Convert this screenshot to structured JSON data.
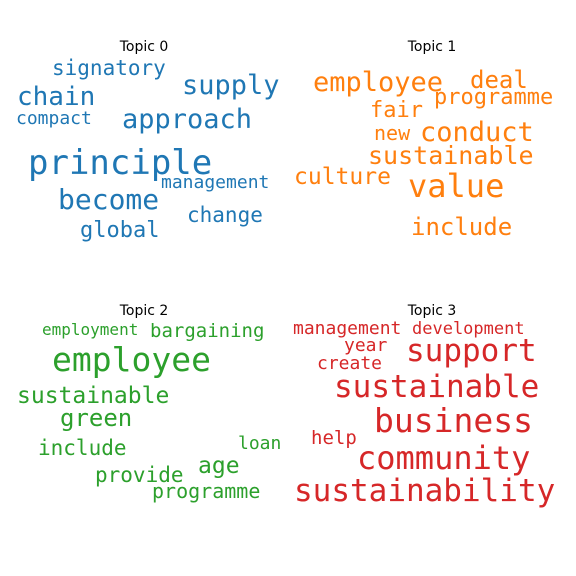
{
  "topics": [
    {
      "title": "Topic 0",
      "color": "#1f77b4",
      "words": {
        "signatory": "signatory",
        "supply": "supply",
        "chain": "chain",
        "approach": "approach",
        "compact": "compact",
        "principle": "principle",
        "management": "management",
        "become": "become",
        "change": "change",
        "global": "global"
      }
    },
    {
      "title": "Topic 1",
      "color": "#ff7f0e",
      "words": {
        "employee": "employee",
        "deal": "deal",
        "programme": "programme",
        "fair": "fair",
        "new": "new",
        "conduct": "conduct",
        "sustainable": "sustainable",
        "culture": "culture",
        "value": "value",
        "include": "include"
      }
    },
    {
      "title": "Topic 2",
      "color": "#2ca02c",
      "words": {
        "employment": "employment",
        "bargaining": "bargaining",
        "employee": "employee",
        "sustainable": "sustainable",
        "green": "green",
        "include": "include",
        "loan": "loan",
        "age": "age",
        "provide": "provide",
        "programme": "programme"
      }
    },
    {
      "title": "Topic 3",
      "color": "#d62728",
      "words": {
        "management": "management",
        "development": "development",
        "year": "year",
        "support": "support",
        "create": "create",
        "sustainable": "sustainable",
        "business": "business",
        "help": "help",
        "community": "community",
        "sustainability": "sustainability"
      }
    }
  ]
}
